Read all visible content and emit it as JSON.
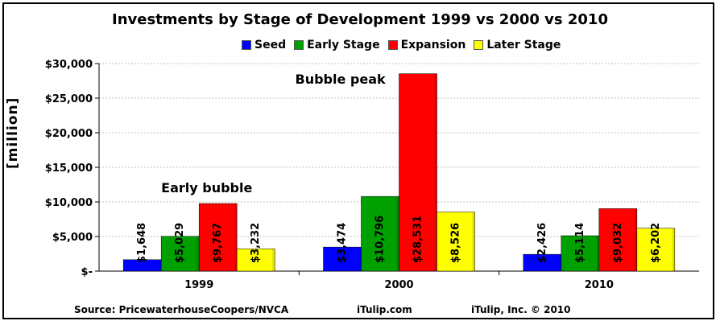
{
  "chart_data": {
    "type": "bar",
    "title": "Investments by Stage of Development 1999 vs 2000 vs 2010",
    "ylabel": "[million]",
    "xlabel": "",
    "categories": [
      "1999",
      "2000",
      "2010"
    ],
    "series": [
      {
        "name": "Seed",
        "color": "#0000ff",
        "values": [
          1648,
          3474,
          2426
        ],
        "labels": [
          "$1,648",
          "$3,474",
          "$2,426"
        ]
      },
      {
        "name": "Early Stage",
        "color": "#00a000",
        "values": [
          5029,
          10796,
          5114
        ],
        "labels": [
          "$5,029",
          "$10,796",
          "$5,114"
        ]
      },
      {
        "name": "Expansion",
        "color": "#ff0000",
        "values": [
          9767,
          28531,
          9032
        ],
        "labels": [
          "$9,767",
          "$28,531",
          "$9,032"
        ]
      },
      {
        "name": "Later Stage",
        "color": "#ffff00",
        "values": [
          3232,
          8526,
          6202
        ],
        "labels": [
          "$3,232",
          "$8,526",
          "$6,202"
        ]
      }
    ],
    "ylim": [
      0,
      30000
    ],
    "yticks": [
      0,
      5000,
      10000,
      15000,
      20000,
      25000,
      30000
    ],
    "ytick_labels": [
      "$-",
      "$5,000",
      "$10,000",
      "$15,000",
      "$20,000",
      "$25,000",
      "$30,000"
    ],
    "grid": true,
    "legend_position": "top",
    "annotations": [
      {
        "text": "Early bubble",
        "category": "1999",
        "value": 12000
      },
      {
        "text": "Bubble peak",
        "category": "2000",
        "value": 28500
      }
    ]
  },
  "footer": {
    "source": "Source: PricewaterhouseCoopers/NVCA",
    "site": "iTulip.com",
    "copyright": "iTulip, Inc. © 2010"
  }
}
